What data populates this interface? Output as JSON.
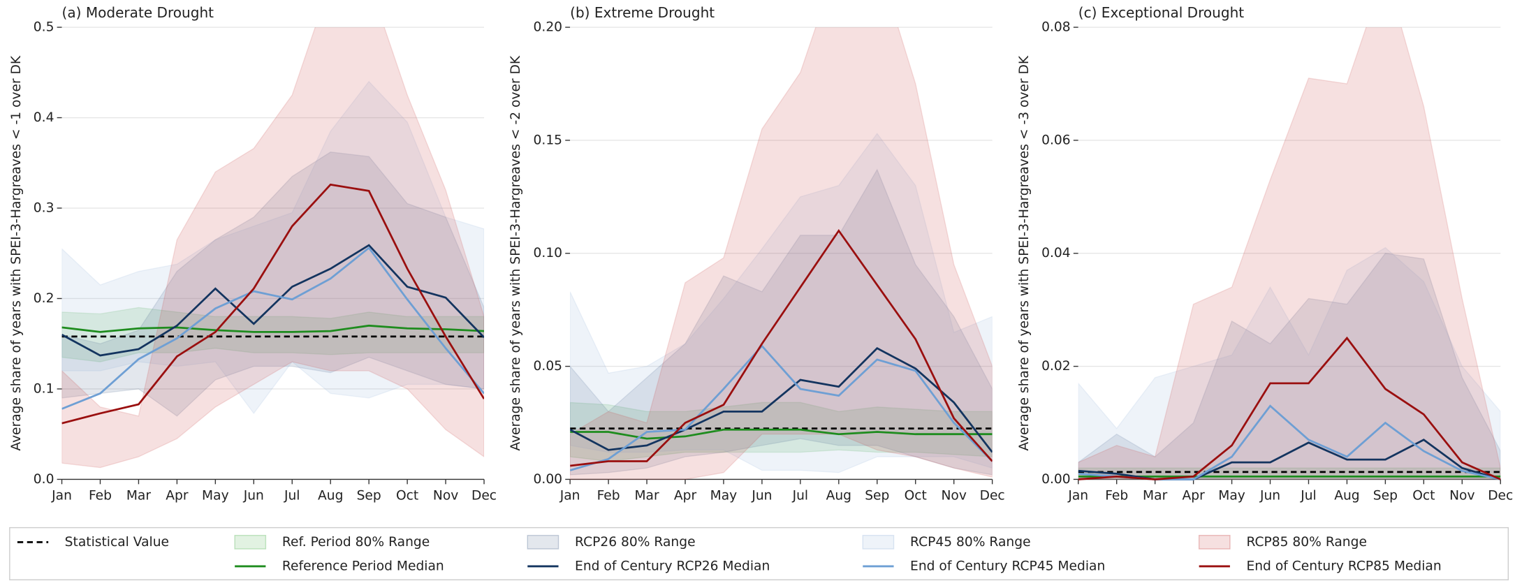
{
  "legend": [
    {
      "name": "Statistical Value",
      "type": "line",
      "color": "#000000",
      "dash": true
    },
    {
      "name": "Ref. Period 80% Range",
      "type": "band",
      "color": "#5cb85c",
      "opacity": 0.18
    },
    {
      "name": "Reference Period Median",
      "type": "line",
      "color": "#1e8c1e"
    },
    {
      "name": "RCP26 80% Range",
      "type": "band",
      "color": "#1a3a6b",
      "opacity": 0.12
    },
    {
      "name": "End of Century RCP26 Median",
      "type": "line",
      "color": "#13345f"
    },
    {
      "name": "RCP45 80% Range",
      "type": "band",
      "color": "#8fb0d8",
      "opacity": 0.15
    },
    {
      "name": "End of Century RCP45 Median",
      "type": "line",
      "color": "#6e9fd4"
    },
    {
      "name": "RCP85 80% Range",
      "type": "band",
      "color": "#c84a4a",
      "opacity": 0.17
    },
    {
      "name": "End of Century RCP85 Median",
      "type": "line",
      "color": "#9a0f0f"
    }
  ],
  "chart_data": [
    {
      "type": "line",
      "title": "(a) Moderate Drought",
      "ylabel": "Average share of years with SPEI-3-Hargreaves < -1 over DK",
      "categories": [
        "Jan",
        "Feb",
        "Mar",
        "Apr",
        "May",
        "Jun",
        "Jul",
        "Aug",
        "Sep",
        "Oct",
        "Nov",
        "Dec"
      ],
      "ylim": [
        0,
        0.5
      ],
      "yticks": [
        {
          "value": 0,
          "label": "0.0"
        },
        0.1,
        0.2,
        0.3,
        0.4,
        0.5
      ],
      "grid": true,
      "series": [
        {
          "values": [
            0.158,
            0.158,
            0.158,
            0.158,
            0.158,
            0.158,
            0.158,
            0.158,
            0.158,
            0.158,
            0.158,
            0.158
          ]
        },
        {
          "low": [
            0.135,
            0.13,
            0.14,
            0.14,
            0.145,
            0.14,
            0.14,
            0.138,
            0.14,
            0.14,
            0.14,
            0.14
          ],
          "high": [
            0.185,
            0.183,
            0.19,
            0.185,
            0.18,
            0.18,
            0.18,
            0.178,
            0.185,
            0.18,
            0.18,
            0.18
          ]
        },
        {
          "values": [
            0.168,
            0.163,
            0.167,
            0.168,
            0.165,
            0.163,
            0.163,
            0.164,
            0.17,
            0.167,
            0.166,
            0.164
          ]
        },
        {
          "low": [
            0.09,
            0.095,
            0.1,
            0.07,
            0.11,
            0.125,
            0.125,
            0.118,
            0.135,
            0.12,
            0.105,
            0.1
          ],
          "high": [
            0.16,
            0.15,
            0.165,
            0.23,
            0.265,
            0.29,
            0.335,
            0.362,
            0.357,
            0.305,
            0.29,
            0.19
          ]
        },
        {
          "values": [
            0.16,
            0.137,
            0.144,
            0.17,
            0.211,
            0.172,
            0.213,
            0.233,
            0.259,
            0.213,
            0.201,
            0.157
          ]
        },
        {
          "low": [
            0.12,
            0.12,
            0.13,
            0.125,
            0.13,
            0.073,
            0.13,
            0.095,
            0.09,
            0.105,
            0.105,
            0.1
          ],
          "high": [
            0.255,
            0.215,
            0.23,
            0.238,
            0.265,
            0.28,
            0.295,
            0.385,
            0.44,
            0.395,
            0.29,
            0.277
          ]
        },
        {
          "values": [
            0.078,
            0.095,
            0.133,
            0.156,
            0.189,
            0.208,
            0.199,
            0.222,
            0.256,
            0.199,
            0.145,
            0.095
          ]
        },
        {
          "low": [
            0.018,
            0.013,
            0.025,
            0.045,
            0.08,
            0.105,
            0.13,
            0.12,
            0.12,
            0.1,
            0.055,
            0.025
          ],
          "high": [
            0.12,
            0.08,
            0.07,
            0.265,
            0.34,
            0.366,
            0.425,
            0.55,
            0.55,
            0.425,
            0.32,
            0.18
          ]
        },
        {
          "values": [
            0.062,
            0.073,
            0.083,
            0.136,
            0.163,
            0.211,
            0.28,
            0.326,
            0.319,
            0.233,
            0.158,
            0.089
          ]
        }
      ]
    },
    {
      "type": "line",
      "title": "(b) Extreme Drought",
      "ylabel": "Average share of years with SPEI-3-Hargreaves < -2 over DK",
      "categories": [
        "Jan",
        "Feb",
        "Mar",
        "Apr",
        "May",
        "Jun",
        "Jul",
        "Aug",
        "Sep",
        "Oct",
        "Nov",
        "Dec"
      ],
      "ylim": [
        0,
        0.2
      ],
      "yticks": [
        {
          "value": 0,
          "label": "0.00"
        },
        0.05,
        {
          "value": 0.1,
          "label": "0.10"
        },
        0.15,
        {
          "value": 0.2,
          "label": "0.20"
        }
      ],
      "grid": true,
      "series": [
        {
          "values": [
            0.0225,
            0.0225,
            0.0225,
            0.0225,
            0.0225,
            0.0225,
            0.0225,
            0.0225,
            0.0225,
            0.0225,
            0.0225,
            0.0225
          ]
        },
        {
          "low": [
            0.01,
            0.008,
            0.01,
            0.012,
            0.012,
            0.012,
            0.012,
            0.013,
            0.012,
            0.012,
            0.011,
            0.01
          ],
          "high": [
            0.034,
            0.033,
            0.03,
            0.03,
            0.032,
            0.034,
            0.034,
            0.03,
            0.032,
            0.031,
            0.03,
            0.03
          ]
        },
        {
          "values": [
            0.021,
            0.021,
            0.018,
            0.019,
            0.022,
            0.022,
            0.022,
            0.02,
            0.021,
            0.02,
            0.02,
            0.02
          ]
        },
        {
          "low": [
            0.002,
            0.003,
            0.005,
            0.01,
            0.012,
            0.015,
            0.018,
            0.015,
            0.015,
            0.01,
            0.005,
            0.002
          ],
          "high": [
            0.05,
            0.03,
            0.045,
            0.06,
            0.09,
            0.083,
            0.108,
            0.108,
            0.137,
            0.095,
            0.072,
            0.04
          ]
        },
        {
          "values": [
            0.022,
            0.013,
            0.015,
            0.022,
            0.03,
            0.03,
            0.044,
            0.041,
            0.058,
            0.049,
            0.034,
            0.012
          ]
        },
        {
          "low": [
            0.015,
            0.012,
            0.012,
            0.013,
            0.013,
            0.004,
            0.004,
            0.003,
            0.01,
            0.01,
            0.01,
            0.005
          ],
          "high": [
            0.083,
            0.047,
            0.05,
            0.06,
            0.08,
            0.102,
            0.125,
            0.13,
            0.153,
            0.13,
            0.065,
            0.072
          ]
        },
        {
          "values": [
            0.004,
            0.009,
            0.021,
            0.022,
            0.04,
            0.059,
            0.04,
            0.037,
            0.053,
            0.048,
            0.025,
            0.008
          ]
        },
        {
          "low": [
            0,
            0,
            0,
            0,
            0.003,
            0.02,
            0.02,
            0.02,
            0.013,
            0.01,
            0.005,
            0.001
          ],
          "high": [
            0.02,
            0.03,
            0.025,
            0.087,
            0.098,
            0.155,
            0.18,
            0.23,
            0.23,
            0.175,
            0.095,
            0.05
          ]
        },
        {
          "values": [
            0.006,
            0.008,
            0.008,
            0.025,
            0.033,
            0.06,
            0.085,
            0.11,
            0.086,
            0.062,
            0.027,
            0.008
          ]
        }
      ]
    },
    {
      "type": "line",
      "title": "(c) Exceptional Drought",
      "ylabel": "Average share of years with SPEI-3-Hargreaves < -3 over DK",
      "categories": [
        "Jan",
        "Feb",
        "Mar",
        "Apr",
        "May",
        "Jun",
        "Jul",
        "Aug",
        "Sep",
        "Oct",
        "Nov",
        "Dec"
      ],
      "ylim": [
        0,
        0.08
      ],
      "yticks": [
        {
          "value": 0,
          "label": "0.00"
        },
        0.02,
        0.04,
        0.06,
        0.08
      ],
      "grid": true,
      "series": [
        {
          "values": [
            0.0013,
            0.0013,
            0.0013,
            0.0013,
            0.0013,
            0.0013,
            0.0013,
            0.0013,
            0.0013,
            0.0013,
            0.0013,
            0.0013
          ]
        },
        {
          "low": [
            0,
            0,
            0,
            0,
            0,
            0,
            0,
            0,
            0,
            0,
            0,
            0
          ],
          "high": [
            0.002,
            0.002,
            0.002,
            0.002,
            0.002,
            0.002,
            0.002,
            0.002,
            0.002,
            0.002,
            0.002,
            0.002
          ]
        },
        {
          "values": [
            0.0005,
            0.0005,
            0.0005,
            0.0005,
            0.0005,
            0.0005,
            0.0005,
            0.0005,
            0.0005,
            0.0005,
            0.0005,
            0.0005
          ]
        },
        {
          "low": [
            0,
            0,
            0,
            0,
            0,
            0,
            0,
            0,
            0,
            0,
            0,
            0
          ],
          "high": [
            0.003,
            0.008,
            0.004,
            0.01,
            0.028,
            0.024,
            0.032,
            0.031,
            0.04,
            0.039,
            0.018,
            0.005
          ]
        },
        {
          "values": [
            0.0015,
            0.001,
            0,
            0,
            0.003,
            0.003,
            0.0065,
            0.0035,
            0.0035,
            0.007,
            0.002,
            0
          ]
        },
        {
          "low": [
            0,
            0,
            0,
            0,
            0,
            0,
            0,
            0,
            0,
            0,
            0,
            0
          ],
          "high": [
            0.017,
            0.009,
            0.018,
            0.02,
            0.022,
            0.034,
            0.022,
            0.037,
            0.041,
            0.035,
            0.02,
            0.012
          ]
        },
        {
          "values": [
            0.001,
            0.0005,
            0,
            0,
            0.004,
            0.013,
            0.007,
            0.004,
            0.01,
            0.005,
            0.0015,
            0
          ]
        },
        {
          "low": [
            0,
            0,
            0,
            0,
            0,
            0,
            0,
            0,
            0,
            0,
            0,
            0
          ],
          "high": [
            0.003,
            0.006,
            0.004,
            0.031,
            0.034,
            0.053,
            0.071,
            0.07,
            0.09,
            0.066,
            0.032,
            0.002
          ]
        },
        {
          "values": [
            0,
            0.0005,
            0,
            0.0005,
            0.006,
            0.017,
            0.017,
            0.025,
            0.016,
            0.0115,
            0.003,
            0
          ]
        }
      ]
    }
  ]
}
